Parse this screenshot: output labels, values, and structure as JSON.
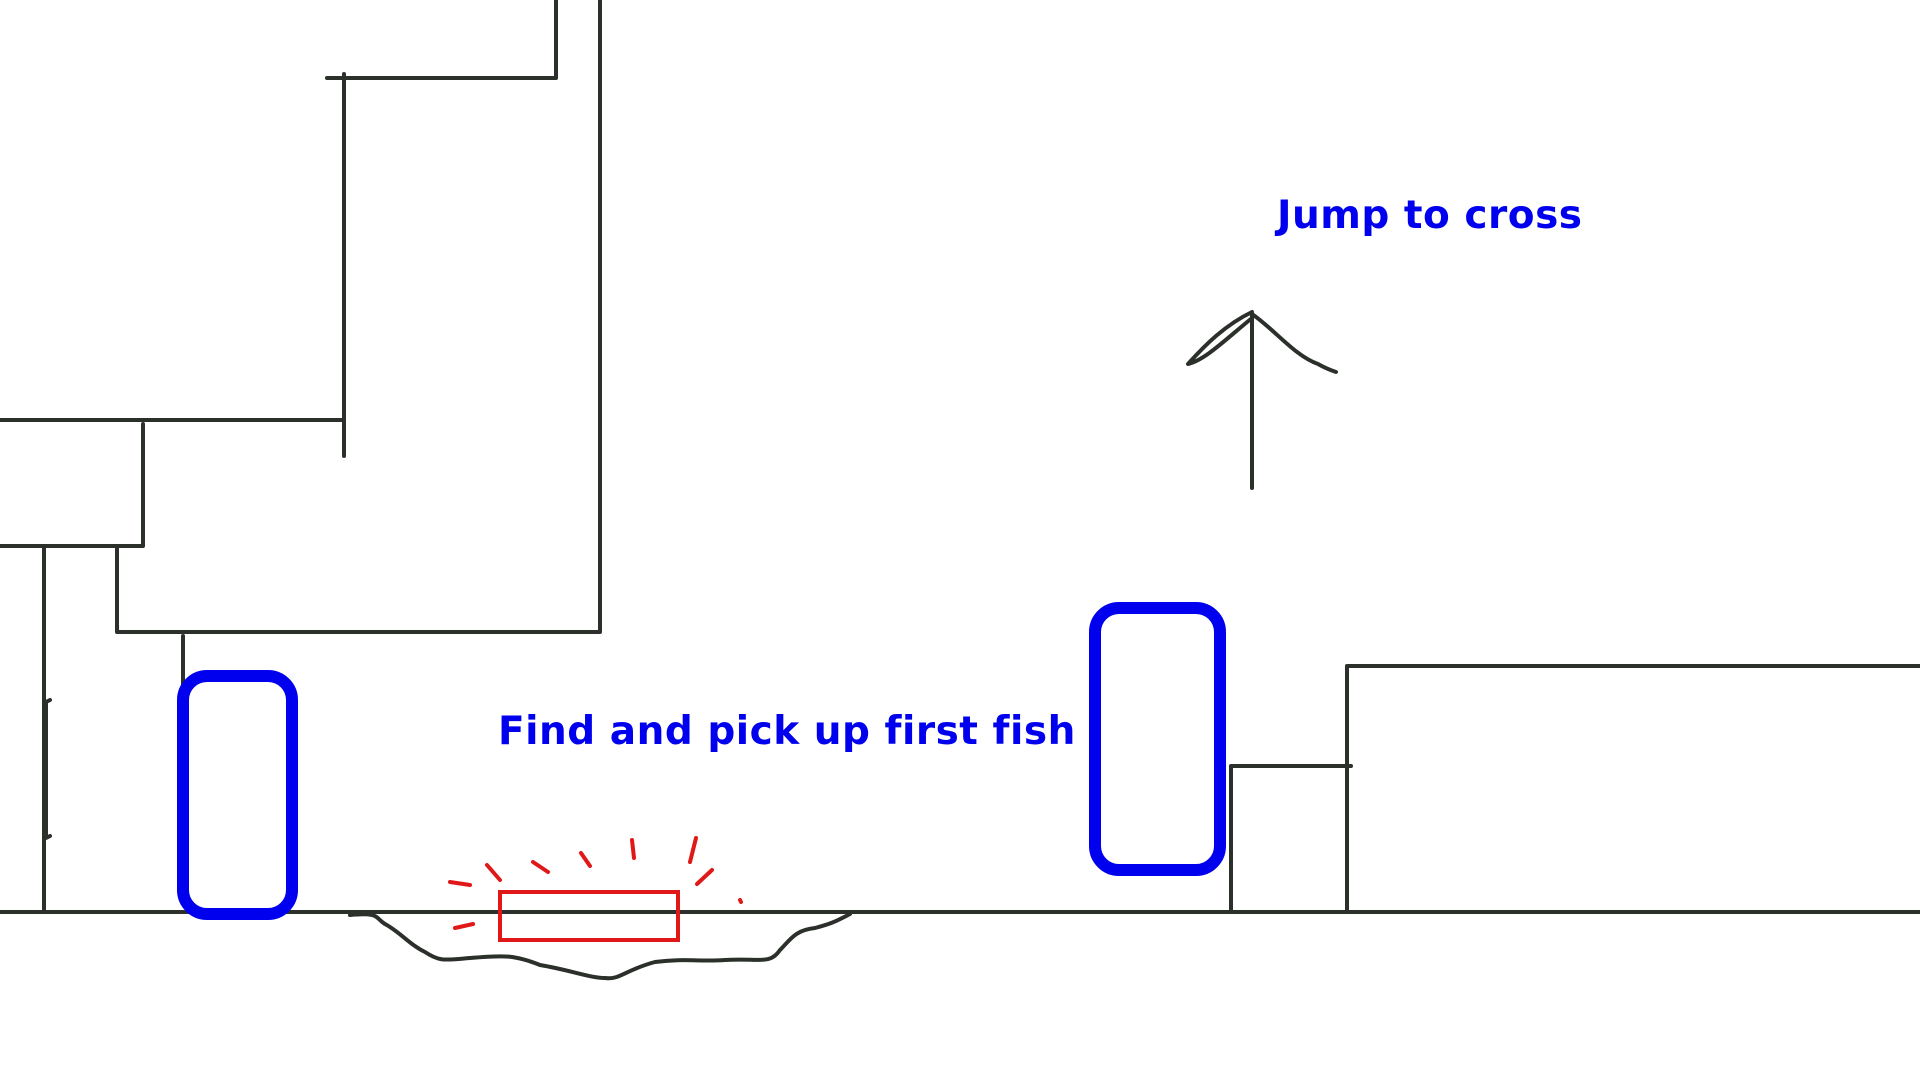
{
  "annotations": {
    "jump_label": "Jump to cross",
    "fish_label": "Find and pick up first fish"
  },
  "colors": {
    "background": "#ffffff",
    "line": "#2b302b",
    "marker": "#0000ee",
    "fish": "#e01818"
  },
  "icons": {
    "direction": "up-arrow-icon",
    "pickup": "sparkle-icon"
  }
}
